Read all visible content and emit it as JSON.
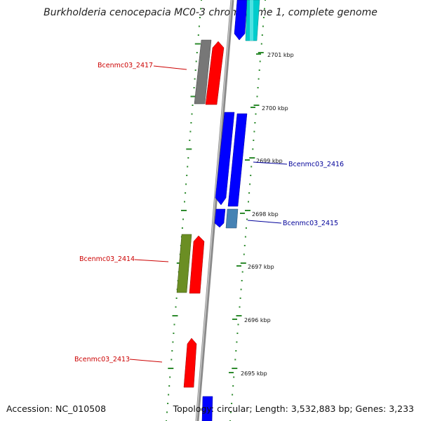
{
  "title": "Burkholderia cenocepacia MC0-3 chromosome 1, complete genome",
  "footer": {
    "accession": "Accession: NC_010508",
    "summary": "Topology: circular; Length: 3,532,883 bp; Genes: 3,233"
  },
  "ticks": [
    "2701 kbp",
    "2700 kbp",
    "2699 kbp",
    "2698 kbp",
    "2697 kbp",
    "2696 kbp",
    "2695 kbp"
  ],
  "gene_labels": [
    {
      "text": "Bcenmc03_2417",
      "color": "#cc0000"
    },
    {
      "text": "Bcenmc03_2416",
      "color": "#000099"
    },
    {
      "text": "Bcenmc03_2415",
      "color": "#000099"
    },
    {
      "text": "Bcenmc03_2414",
      "color": "#cc0000"
    },
    {
      "text": "Bcenmc03_2413",
      "color": "#cc0000"
    }
  ],
  "colors": {
    "backbone": "#888888",
    "gc_skew": "#2e8b2e",
    "red": "#ff0000",
    "blue": "#0000ff",
    "cyan": "#00cccc",
    "gray": "#777777",
    "olive": "#6b8e23",
    "steel": "#4682b4"
  }
}
